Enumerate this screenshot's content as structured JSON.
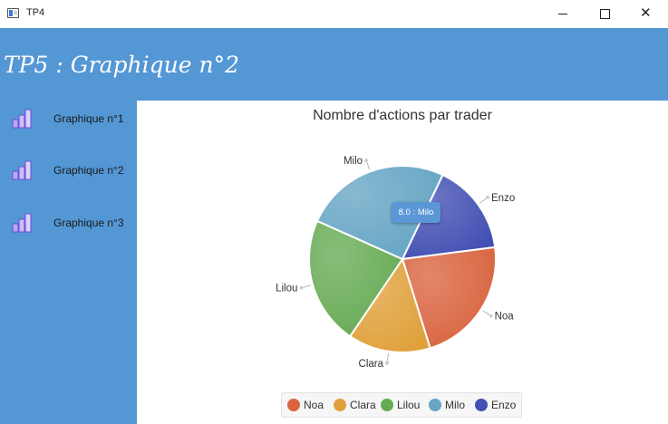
{
  "window": {
    "title": "TP4"
  },
  "header": {
    "title": "TP5 : Graphique n°2"
  },
  "sidebar": {
    "items": [
      {
        "label": "Graphique n°1",
        "icon": "bar-chart-icon"
      },
      {
        "label": "Graphique n°2",
        "icon": "bar-chart-icon"
      },
      {
        "label": "Graphique n°3",
        "icon": "bar-chart-icon"
      }
    ]
  },
  "tooltip": {
    "text": "8.0 : Milo"
  },
  "chart_data": {
    "type": "pie",
    "title": "Nombre d'actions par trader",
    "slices": [
      {
        "name": "Enzo",
        "value": 5,
        "color": "#4350b3"
      },
      {
        "name": "Noa",
        "value": 7,
        "color": "#d9643f"
      },
      {
        "name": "Clara",
        "value": 4.5,
        "color": "#e0a13c"
      },
      {
        "name": "Lilou",
        "value": 7,
        "color": "#67ab55"
      },
      {
        "name": "Milo",
        "value": 8,
        "color": "#66a5c4"
      }
    ],
    "legend_position": "bottom"
  }
}
